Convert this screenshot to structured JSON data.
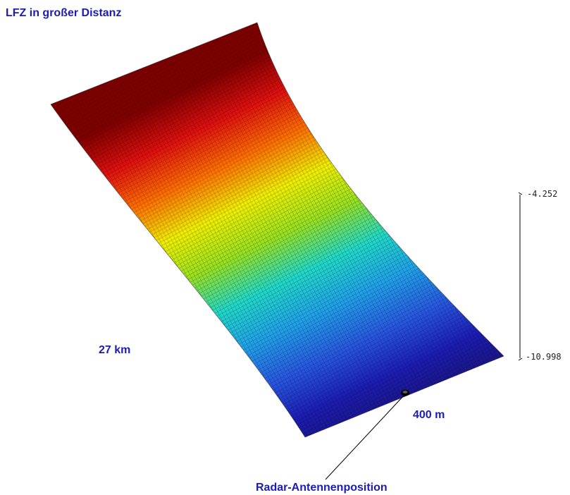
{
  "title": "LFZ in großer Distanz",
  "labels": {
    "distance": "27 km",
    "width": "400 m",
    "antenna": "Radar-Antennenposition"
  },
  "scale": {
    "max": "-4.252",
    "min": "-10.998"
  },
  "colormap": [
    "#800000",
    "#e01010",
    "#ff7000",
    "#f0ef00",
    "#98e020",
    "#20d8c8",
    "#20a0e8",
    "#2858e0",
    "#1c1cb4",
    "#1a1478"
  ],
  "colors": {
    "label_text": "#1c1cb4",
    "grid_line": "#000000",
    "marker": "#000000"
  }
}
